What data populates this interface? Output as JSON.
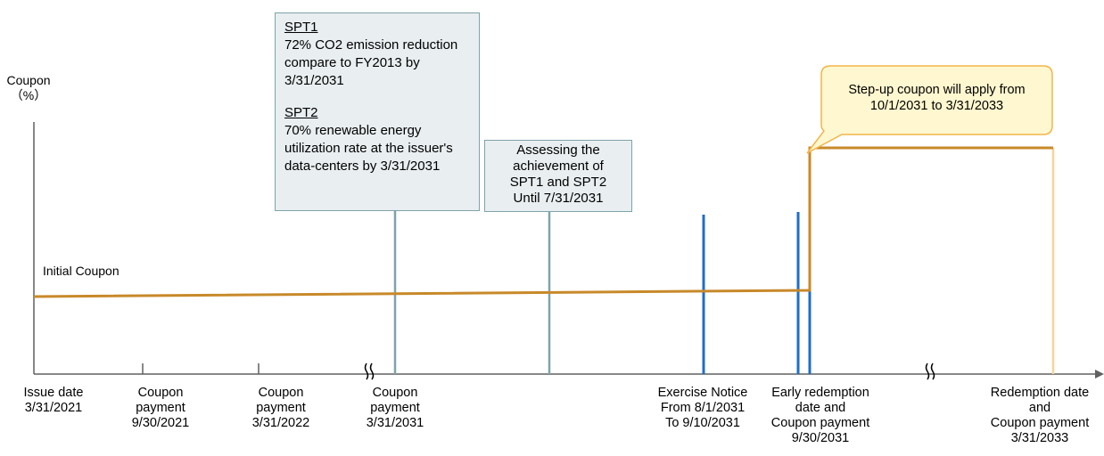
{
  "y_axis": {
    "label_line1": "Coupon",
    "label_line2": "（%）"
  },
  "initial_coupon_label": "Initial Coupon",
  "spt_box": {
    "spt1_title": "SPT1",
    "spt1_text": "72% CO2 emission reduction compare to FY2013 by 3/31/2031",
    "spt2_title": "SPT2",
    "spt2_text": "70% renewable energy utilization rate at the issuer's data-centers by 3/31/2031"
  },
  "assess_box": {
    "line1": "Assessing the",
    "line2": "achievement of",
    "line3": "SPT1 and SPT2",
    "line4": "Until 7/31/2031"
  },
  "step_up_note": {
    "line1": "Step-up coupon will apply from",
    "line2": "10/1/2031 to 3/31/2033"
  },
  "timeline": [
    {
      "line1": "Issue date",
      "line2": "3/31/2021"
    },
    {
      "line1": "Coupon",
      "line2": "payment",
      "line3": "9/30/2021"
    },
    {
      "line1": "Coupon",
      "line2": "payment",
      "line3": "3/31/2022"
    },
    {
      "line1": "Coupon",
      "line2": "payment",
      "line3": "3/31/2031"
    },
    {
      "line1": "Exercise Notice",
      "line2": "From 8/1/2031",
      "line3": "To 9/10/2031"
    },
    {
      "line1": "Early redemption",
      "line2": "date and",
      "line3": "Coupon payment",
      "line4": "9/30/2031"
    },
    {
      "line1": "Redemption date",
      "line2": "and",
      "line3": "Coupon payment",
      "line4": "3/31/2033"
    }
  ],
  "colors": {
    "coupon_line": "#c8892a",
    "axis": "#606060",
    "teal_line": "#7fa3aa",
    "blue_line": "#1f6fc5",
    "box_fill": "#e9eef0",
    "note_fill": "#fff7cf",
    "note_border": "#f1b54a",
    "maturity_line": "#f6d49a"
  }
}
